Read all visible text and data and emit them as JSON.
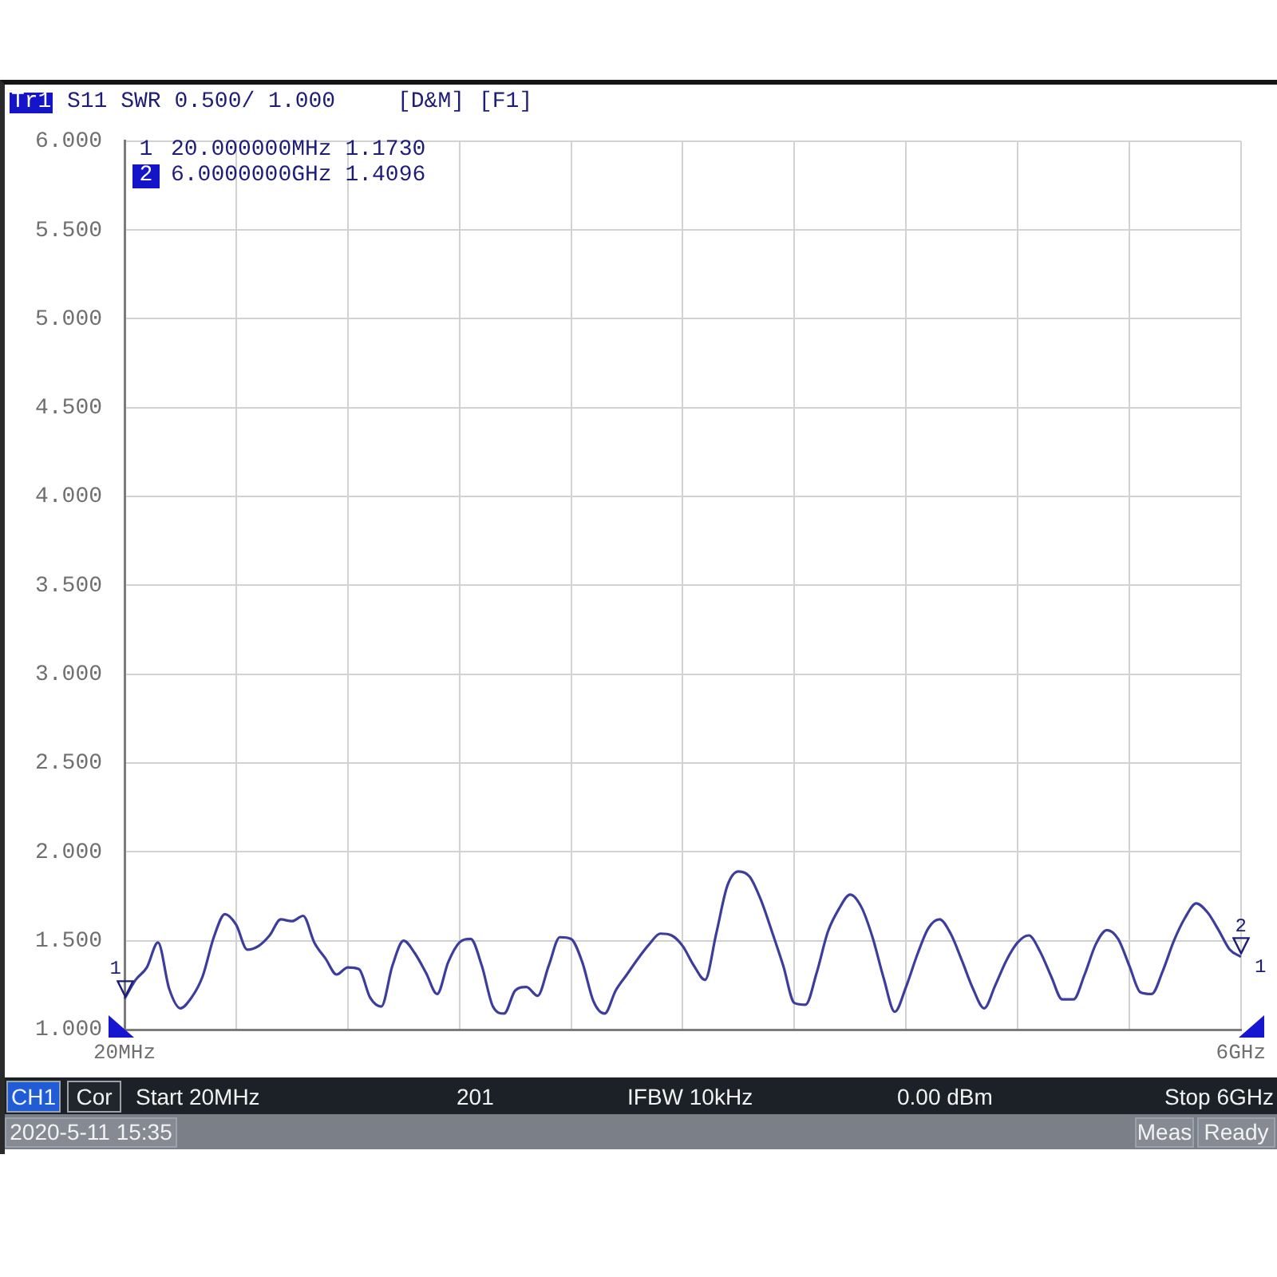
{
  "chart_data": {
    "type": "line",
    "title": "S11 SWR 0.500/ 1.000",
    "categories": [
      "20MHz",
      null,
      null,
      null,
      null,
      null,
      null,
      null,
      null,
      null,
      null,
      null,
      null,
      null,
      null,
      null,
      null,
      null,
      null,
      null,
      null,
      null,
      null,
      null,
      null,
      null,
      null,
      null,
      null,
      null,
      null,
      null,
      null,
      null,
      null,
      null,
      null,
      null,
      null,
      null,
      null,
      null,
      null,
      null,
      null,
      null,
      null,
      null,
      null,
      null,
      null,
      null,
      null,
      null,
      null,
      null,
      null,
      null,
      null,
      null,
      null,
      null,
      null,
      null,
      null,
      null,
      null,
      null,
      null,
      null,
      null,
      null,
      null,
      null,
      null,
      null,
      null,
      null,
      null,
      null,
      null,
      null,
      null,
      null,
      null,
      null,
      null,
      null,
      null,
      null,
      null,
      null,
      null,
      null,
      null,
      null,
      null,
      null,
      null,
      null,
      "6GHz"
    ],
    "series": [
      {
        "color": "#3d3d9e",
        "values": [
          1.173,
          1.28,
          1.35,
          1.49,
          1.23,
          1.12,
          1.18,
          1.3,
          1.52,
          1.65,
          1.59,
          1.45,
          1.47,
          1.53,
          1.62,
          1.61,
          1.64,
          1.49,
          1.4,
          1.31,
          1.35,
          1.34,
          1.18,
          1.13,
          1.36,
          1.5,
          1.43,
          1.32,
          1.2,
          1.38,
          1.49,
          1.51,
          1.36,
          1.13,
          1.09,
          1.22,
          1.24,
          1.19,
          1.36,
          1.52,
          1.51,
          1.38,
          1.16,
          1.09,
          1.22,
          1.31,
          1.4,
          1.48,
          1.54,
          1.53,
          1.47,
          1.36,
          1.28,
          1.54,
          1.81,
          1.89,
          1.86,
          1.73,
          1.55,
          1.36,
          1.15,
          1.14,
          1.32,
          1.55,
          1.68,
          1.76,
          1.69,
          1.52,
          1.29,
          1.1,
          1.24,
          1.42,
          1.57,
          1.62,
          1.54,
          1.39,
          1.23,
          1.12,
          1.25,
          1.39,
          1.49,
          1.53,
          1.44,
          1.3,
          1.17,
          1.17,
          1.31,
          1.48,
          1.56,
          1.51,
          1.36,
          1.21,
          1.2,
          1.33,
          1.5,
          1.63,
          1.71,
          1.66,
          1.56,
          1.45,
          1.4096
        ]
      }
    ],
    "ylim": [
      1,
      6
    ],
    "yticks": [
      {
        "value": 1,
        "label": "1.000"
      },
      {
        "value": 1.5,
        "label": "1.500"
      },
      {
        "value": 2,
        "label": "2.000"
      },
      {
        "value": 2.5,
        "label": "2.500"
      },
      {
        "value": 3,
        "label": "3.000"
      },
      {
        "value": 3.5,
        "label": "3.500"
      },
      {
        "value": 4,
        "label": "4.000"
      },
      {
        "value": 4.5,
        "label": "4.500"
      },
      {
        "value": 5,
        "label": "5.000"
      },
      {
        "value": 5.5,
        "label": "5.500"
      },
      {
        "value": 6,
        "label": "6.000"
      }
    ],
    "grid": true,
    "legend": false,
    "marker": "none",
    "annotations": [
      "Tr1",
      "[D&M]",
      "[F1]",
      "1 20.000000MHz 1.1730",
      "2 6.0000000GHz 1.4096",
      "1",
      {
        "text": "1",
        "x": "20MHz",
        "y": 1.173
      },
      {
        "text": "2",
        "x": "6GHz",
        "y": 1.4096
      },
      "CH1",
      "Cor",
      "Start 20MHz",
      "201",
      "IFBW 10kHz",
      "0.00 dBm",
      "Stop 6GHz",
      "2020-5-11 15:35",
      "Meas",
      "Ready"
    ]
  }
}
